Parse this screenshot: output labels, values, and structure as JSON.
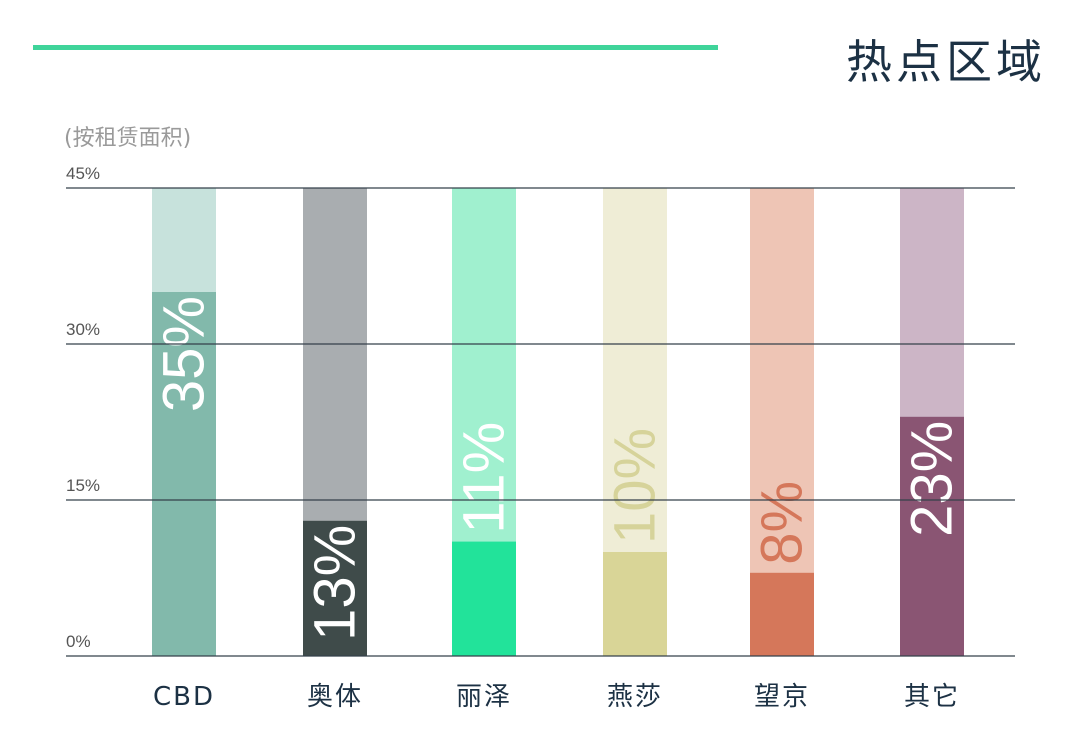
{
  "header": {
    "title": "热点区域",
    "accent_color": "#3fd49a"
  },
  "chart_data": {
    "type": "bar",
    "title": "热点区域",
    "subtitle": "(按租赁面积)",
    "categories": [
      "CBD",
      "奥体",
      "丽泽",
      "燕莎",
      "望京",
      "其它"
    ],
    "values": [
      35,
      13,
      11,
      10,
      8,
      23
    ],
    "value_labels": [
      "35%",
      "13%",
      "11%",
      "10%",
      "8%",
      "23%"
    ],
    "ylim": [
      0,
      45
    ],
    "yticks": [
      0,
      15,
      30,
      45
    ],
    "ytick_labels": [
      "0%",
      "15%",
      "30%",
      "45%"
    ],
    "grid": true,
    "colors": [
      {
        "fill": "#82b9ab",
        "track": "#c7e2dc",
        "label": "#ffffff"
      },
      {
        "fill": "#3f4b4a",
        "track": "#a9adb0",
        "label": "#ffffff"
      },
      {
        "fill": "#22e39a",
        "track": "#a0f0cf",
        "label": "#ffffff"
      },
      {
        "fill": "#d9d597",
        "track": "#efedd6",
        "label": "#d6d39a"
      },
      {
        "fill": "#d5775a",
        "track": "#eec5b5",
        "label": "#d5775a"
      },
      {
        "fill": "#8a5573",
        "track": "#ccb5c6",
        "label": "#ffffff"
      }
    ]
  }
}
